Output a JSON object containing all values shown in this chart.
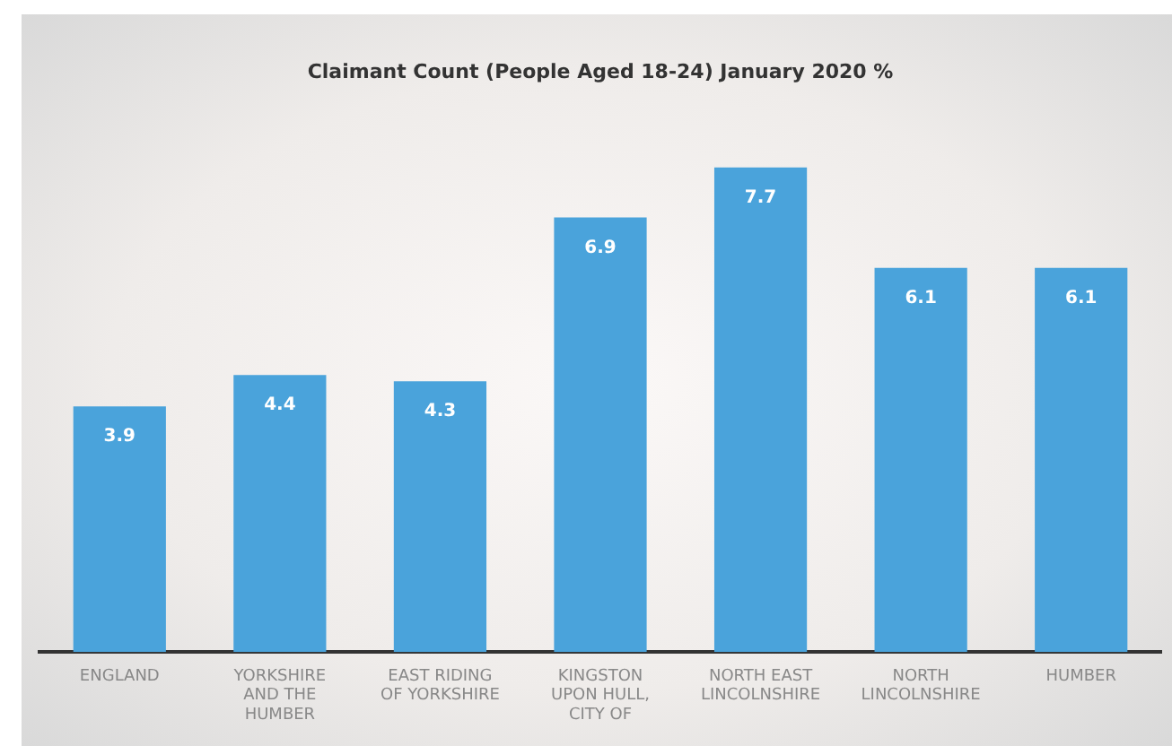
{
  "chart_data": {
    "type": "bar",
    "title": "Claimant Count (People Aged 18-24) January 2020 %",
    "categories": [
      "ENGLAND",
      "YORKSHIRE AND THE HUMBER",
      "EAST RIDING OF YORKSHIRE",
      "KINGSTON UPON HULL, CITY OF",
      "NORTH EAST LINCOLNSHIRE",
      "NORTH LINCOLNSHIRE",
      "HUMBER"
    ],
    "values": [
      3.9,
      4.4,
      4.3,
      6.9,
      7.7,
      6.1,
      6.1
    ],
    "color": "#4aa3db",
    "data_labels": true,
    "grid": false,
    "legend": false
  }
}
